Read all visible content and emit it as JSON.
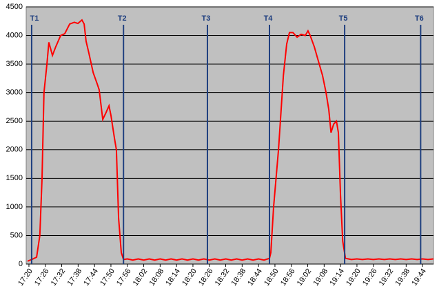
{
  "chart_data": {
    "type": "line",
    "x": [
      1039.5,
      1041,
      1042.8,
      1044,
      1044.8,
      1045.5,
      1046.6,
      1047.3,
      1048.6,
      1049.8,
      1051.6,
      1053.1,
      1054.9,
      1056.6,
      1057.9,
      1059.4,
      1060.2,
      1060.9,
      1061.9,
      1063.5,
      1065,
      1065.7,
      1067,
      1068.2,
      1069.3,
      1070,
      1071.3,
      1072,
      1072.8,
      1073.8,
      1074.6,
      1076,
      1078,
      1080,
      1082,
      1084,
      1086,
      1088,
      1090,
      1092,
      1094,
      1096,
      1098,
      1100,
      1102,
      1104,
      1106,
      1108,
      1110,
      1112,
      1114,
      1116,
      1118,
      1120,
      1122,
      1124,
      1126,
      1128,
      1128.5,
      1129.5,
      1131.3,
      1133.1,
      1134.3,
      1135.3,
      1136.6,
      1138.1,
      1139.6,
      1141.1,
      1142.1,
      1142.9,
      1144.4,
      1146.2,
      1147.4,
      1148.7,
      1149.7,
      1150.5,
      1151.5,
      1152.5,
      1153.2,
      1154,
      1154.8,
      1155.8,
      1158,
      1160,
      1162,
      1164,
      1166,
      1168,
      1170,
      1172,
      1174,
      1176,
      1178,
      1180,
      1182,
      1184,
      1186,
      1188
    ],
    "series": [
      {
        "color": "#ff0000",
        "values": [
          50,
          80,
          120,
          500,
          1500,
          3000,
          3500,
          3880,
          3650,
          3800,
          4000,
          4030,
          4200,
          4230,
          4210,
          4270,
          4200,
          3900,
          3700,
          3350,
          3150,
          3050,
          2530,
          2650,
          2770,
          2600,
          2200,
          2000,
          800,
          200,
          80,
          90,
          70,
          90,
          70,
          90,
          70,
          90,
          70,
          90,
          70,
          90,
          70,
          90,
          70,
          90,
          70,
          90,
          70,
          90,
          70,
          90,
          70,
          90,
          70,
          90,
          70,
          100,
          200,
          1000,
          2000,
          3300,
          3850,
          4050,
          4050,
          3970,
          4020,
          4000,
          4080,
          4000,
          3800,
          3500,
          3300,
          3000,
          2700,
          2300,
          2450,
          2500,
          2300,
          1200,
          400,
          100,
          80,
          90,
          80,
          90,
          80,
          90,
          80,
          90,
          80,
          90,
          80,
          90,
          80,
          90,
          80,
          90
        ]
      }
    ],
    "xlim": [
      1039,
      1188
    ],
    "xticks": [
      {
        "value": 1040,
        "label": "17:20"
      },
      {
        "value": 1046,
        "label": "17:26"
      },
      {
        "value": 1052,
        "label": "17:32"
      },
      {
        "value": 1058,
        "label": "17:38"
      },
      {
        "value": 1064,
        "label": "17:44"
      },
      {
        "value": 1070,
        "label": "17:50"
      },
      {
        "value": 1076,
        "label": "17:56"
      },
      {
        "value": 1082,
        "label": "18:02"
      },
      {
        "value": 1088,
        "label": "18:08"
      },
      {
        "value": 1094,
        "label": "18:14"
      },
      {
        "value": 1100,
        "label": "18:20"
      },
      {
        "value": 1106,
        "label": "18:26"
      },
      {
        "value": 1112,
        "label": "18:32"
      },
      {
        "value": 1118,
        "label": "18:38"
      },
      {
        "value": 1124,
        "label": "18:44"
      },
      {
        "value": 1130,
        "label": "18:50"
      },
      {
        "value": 1136,
        "label": "18:56"
      },
      {
        "value": 1142,
        "label": "19:02"
      },
      {
        "value": 1148,
        "label": "19:08"
      },
      {
        "value": 1154,
        "label": "19:14"
      },
      {
        "value": 1160,
        "label": "19:20"
      },
      {
        "value": 1166,
        "label": "19:26"
      },
      {
        "value": 1172,
        "label": "19:32"
      },
      {
        "value": 1178,
        "label": "19:38"
      },
      {
        "value": 1184,
        "label": "19:44"
      }
    ],
    "ylim": [
      0,
      4500
    ],
    "yticks": [
      0,
      500,
      1000,
      1500,
      2000,
      2500,
      3000,
      3500,
      4000,
      4500
    ],
    "grid": true,
    "markers": [
      {
        "label": "T1",
        "x": 1041
      },
      {
        "label": "T2",
        "x": 1074.6
      },
      {
        "label": "T3",
        "x": 1105.3
      },
      {
        "label": "T4",
        "x": 1128
      },
      {
        "label": "T5",
        "x": 1155.5
      },
      {
        "label": "T6",
        "x": 1183.3
      }
    ]
  }
}
